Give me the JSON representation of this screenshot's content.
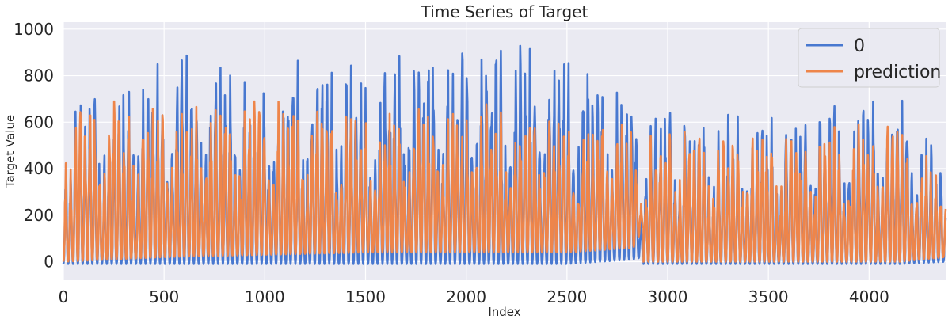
{
  "chart_data": {
    "type": "line",
    "title": "Time Series of Target",
    "xlabel": "Index",
    "ylabel": "Target Value",
    "xlim": [
      0,
      4380
    ],
    "ylim": [
      -80,
      1030
    ],
    "x_ticks": [
      0,
      500,
      1000,
      1500,
      2000,
      2500,
      3000,
      3500,
      4000
    ],
    "y_ticks": [
      0,
      200,
      400,
      600,
      800,
      1000
    ],
    "grid": true,
    "legend_position": "top-right",
    "series": [
      {
        "name": "0",
        "color": "#4878d0",
        "segments": [
          {
            "x": [
              0,
              500
            ],
            "min": [
              -10,
              -10
            ],
            "max": [
              740,
              900
            ]
          },
          {
            "x": [
              500,
              1000
            ],
            "min": [
              -10,
              -10
            ],
            "max": [
              900,
              880
            ]
          },
          {
            "x": [
              1000,
              1500
            ],
            "min": [
              -10,
              -10
            ],
            "max": [
              880,
              860
            ]
          },
          {
            "x": [
              1500,
              2000
            ],
            "min": [
              -10,
              -10
            ],
            "max": [
              860,
              975
            ]
          },
          {
            "x": [
              2000,
              2500
            ],
            "min": [
              -10,
              -10
            ],
            "max": [
              975,
              940
            ]
          },
          {
            "x": [
              2500,
              2830
            ],
            "min": [
              -10,
              10
            ],
            "max": [
              940,
              790
            ]
          },
          {
            "x": [
              2830,
              2880
            ],
            "min": [
              10,
              20
            ],
            "max": [
              790,
              180
            ]
          },
          {
            "x": [
              2880,
              3500
            ],
            "min": [
              -10,
              -10
            ],
            "max": [
              690,
              620
            ]
          },
          {
            "x": [
              3500,
              4150
            ],
            "min": [
              -10,
              -10
            ],
            "max": [
              620,
              740
            ]
          },
          {
            "x": [
              4150,
              4380
            ],
            "min": [
              -10,
              0
            ],
            "max": [
              740,
              400
            ]
          }
        ]
      },
      {
        "name": "prediction",
        "color": "#ee854a",
        "segments": [
          {
            "x": [
              0,
              500
            ],
            "min": [
              0,
              20
            ],
            "max": [
              720,
              680
            ]
          },
          {
            "x": [
              500,
              1000
            ],
            "min": [
              20,
              30
            ],
            "max": [
              680,
              700
            ]
          },
          {
            "x": [
              1000,
              1500
            ],
            "min": [
              30,
              40
            ],
            "max": [
              700,
              670
            ]
          },
          {
            "x": [
              1500,
              2000
            ],
            "min": [
              40,
              40
            ],
            "max": [
              670,
              700
            ]
          },
          {
            "x": [
              2000,
              2500
            ],
            "min": [
              40,
              40
            ],
            "max": [
              700,
              660
            ]
          },
          {
            "x": [
              2500,
              2830
            ],
            "min": [
              40,
              60
            ],
            "max": [
              660,
              620
            ]
          },
          {
            "x": [
              2830,
              2880
            ],
            "min": [
              60,
              150
            ],
            "max": [
              620,
              250
            ]
          },
          {
            "x": [
              2880,
              3500
            ],
            "min": [
              0,
              0
            ],
            "max": [
              610,
              580
            ]
          },
          {
            "x": [
              3500,
              4150
            ],
            "min": [
              0,
              0
            ],
            "max": [
              580,
              600
            ]
          },
          {
            "x": [
              4150,
              4380
            ],
            "min": [
              0,
              20
            ],
            "max": [
              600,
              380
            ]
          }
        ]
      }
    ]
  }
}
